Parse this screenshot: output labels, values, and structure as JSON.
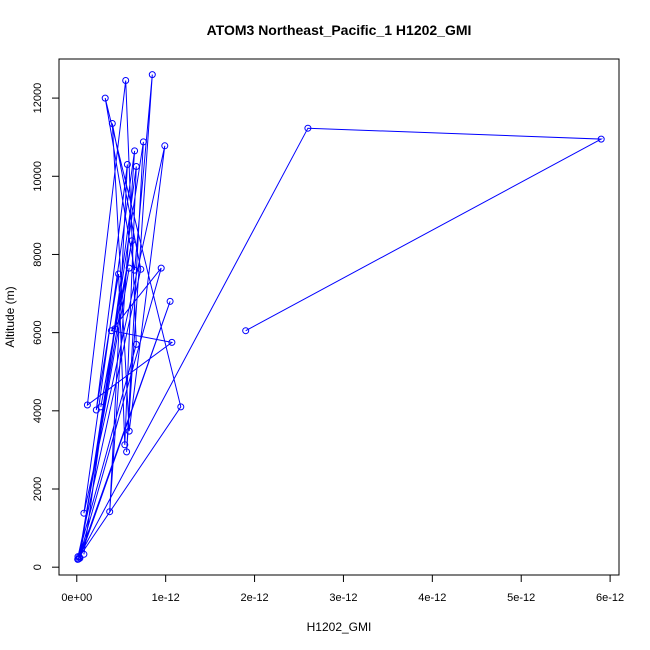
{
  "chart_data": {
    "type": "line",
    "title": "ATOM3 Northeast_Pacific_1 H1202_GMI",
    "xlabel": "H1202_GMI",
    "ylabel": "Altitude (m)",
    "xlim": [
      -2e-13,
      6.1e-12
    ],
    "ylim": [
      -200,
      13000
    ],
    "x_ticks": [
      0,
      1e-12,
      2e-12,
      3e-12,
      4e-12,
      5e-12,
      6e-12
    ],
    "x_tick_labels": [
      "0e+00",
      "1e-12",
      "2e-12",
      "3e-12",
      "4e-12",
      "5e-12",
      "6e-12"
    ],
    "y_ticks": [
      0,
      2000,
      4000,
      6000,
      8000,
      10000,
      12000
    ],
    "y_tick_labels": [
      "0",
      "2000",
      "4000",
      "6000",
      "8000",
      "10000",
      "12000"
    ],
    "grid": false,
    "legend": "none",
    "colors": {
      "series": "#0000ff",
      "axes": "#000000",
      "background": "#ffffff"
    },
    "series": [
      {
        "points": [
          [
            1.9e-12,
            6050
          ],
          [
            5.9e-12,
            10950
          ],
          [
            2.6e-12,
            11230
          ],
          [
            1e-14,
            200
          ],
          [
            1.17e-12,
            4100
          ],
          [
            3.2e-13,
            12000
          ],
          [
            6.5e-13,
            7600
          ],
          [
            8.5e-13,
            12600
          ],
          [
            5.6e-13,
            2950
          ],
          [
            7.5e-13,
            10880
          ],
          [
            3.5e-14,
            230
          ],
          [
            1.05e-12,
            6800
          ],
          [
            3e-14,
            260
          ],
          [
            9.5e-13,
            7650
          ],
          [
            3.9e-13,
            6050
          ],
          [
            1.07e-12,
            5750
          ],
          [
            1.2e-13,
            4150
          ],
          [
            5.5e-13,
            12450
          ],
          [
            6.7e-13,
            5700
          ],
          [
            1.4e-14,
            270
          ],
          [
            7.2e-13,
            7620
          ],
          [
            4e-13,
            11350
          ],
          [
            5.9e-13,
            3480
          ],
          [
            9.9e-13,
            10780
          ],
          [
            8e-14,
            1380
          ],
          [
            6.5e-13,
            10650
          ],
          [
            3.7e-13,
            1420
          ],
          [
            5.7e-13,
            10300
          ],
          [
            2.2e-13,
            4020
          ],
          [
            4.7e-13,
            7500
          ],
          [
            5.4e-13,
            3130
          ],
          [
            6.7e-13,
            10250
          ],
          [
            8e-14,
            330
          ],
          [
            4.3e-13,
            6100
          ],
          [
            2.7e-13,
            4100
          ],
          [
            6.2e-13,
            8350
          ],
          [
            2e-14,
            210
          ],
          [
            5.9e-13,
            7650
          ]
        ]
      }
    ]
  }
}
